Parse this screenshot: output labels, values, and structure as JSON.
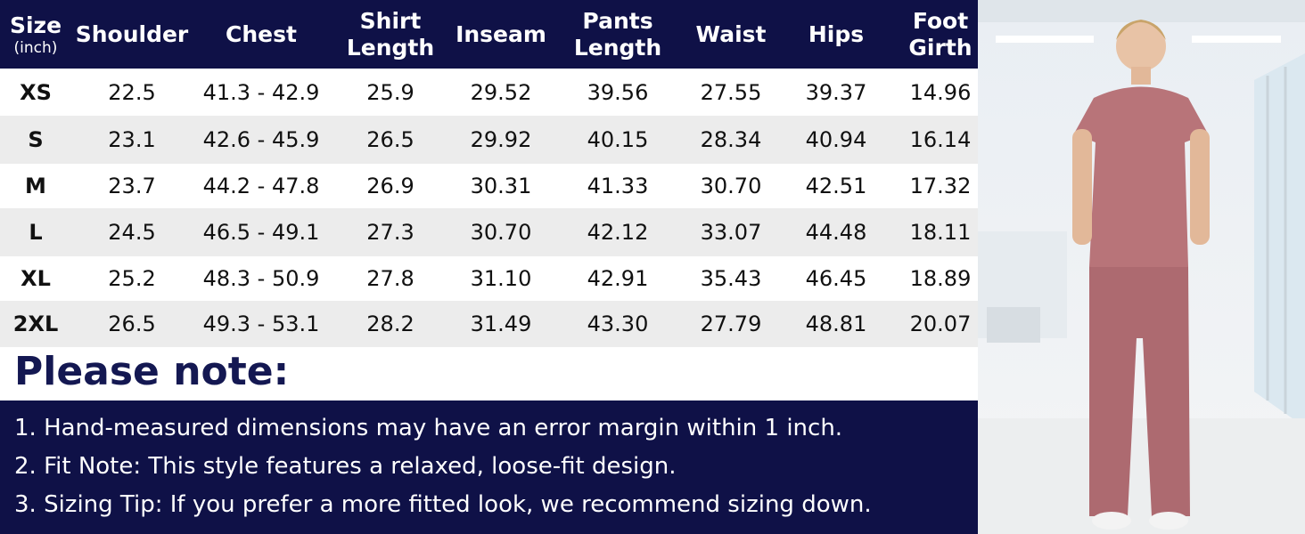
{
  "table": {
    "header": [
      [
        "Size",
        "(inch)"
      ],
      [
        "Shoulder"
      ],
      [
        "Chest"
      ],
      [
        "Shirt",
        "Length"
      ],
      [
        "Inseam"
      ],
      [
        "Pants",
        "Length"
      ],
      [
        "Waist"
      ],
      [
        "Hips"
      ],
      [
        "Foot",
        "Girth"
      ]
    ],
    "rows": [
      [
        "XS",
        "22.5",
        "41.3 - 42.9",
        "25.9",
        "29.52",
        "39.56",
        "27.55",
        "39.37",
        "14.96"
      ],
      [
        "S",
        "23.1",
        "42.6 - 45.9",
        "26.5",
        "29.92",
        "40.15",
        "28.34",
        "40.94",
        "16.14"
      ],
      [
        "M",
        "23.7",
        "44.2 - 47.8",
        "26.9",
        "30.31",
        "41.33",
        "30.70",
        "42.51",
        "17.32"
      ],
      [
        "L",
        "24.5",
        "46.5 - 49.1",
        "27.3",
        "30.70",
        "42.12",
        "33.07",
        "44.48",
        "18.11"
      ],
      [
        "XL",
        "25.2",
        "48.3 - 50.9",
        "27.8",
        "31.10",
        "42.91",
        "35.43",
        "46.45",
        "18.89"
      ],
      [
        "2XL",
        "26.5",
        "49.3 - 53.1",
        "28.2",
        "31.49",
        "43.30",
        "27.79",
        "48.81",
        "20.07"
      ]
    ]
  },
  "notes": {
    "title": "Please note:",
    "items": [
      "1. Hand-measured dimensions may have an error margin within 1 inch.",
      "2. Fit Note: This style features a relaxed, loose-fit design.",
      "3. Sizing Tip: If you prefer a more fitted look, we recommend sizing down."
    ]
  }
}
